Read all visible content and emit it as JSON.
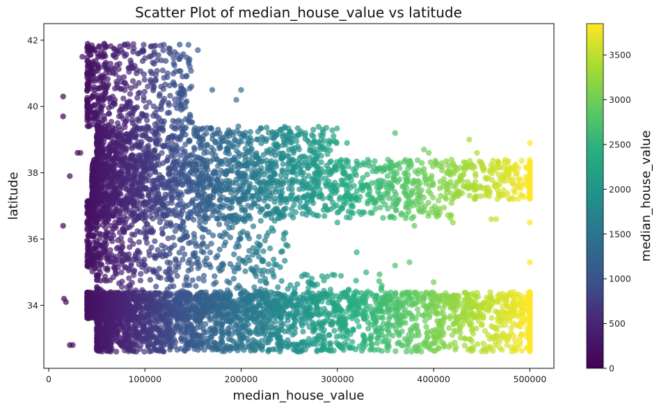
{
  "chart_data": {
    "type": "scatter",
    "title": "Scatter Plot of median_house_value vs latitude",
    "xlabel": "median_house_value",
    "ylabel": "latitude",
    "xlim": [
      -5000,
      525000
    ],
    "ylim": [
      32.1,
      42.5
    ],
    "x_ticks": [
      0,
      100000,
      200000,
      300000,
      400000,
      500000
    ],
    "x_tick_labels": [
      "0",
      "100000",
      "200000",
      "300000",
      "400000",
      "500000"
    ],
    "y_ticks": [
      34,
      36,
      38,
      40,
      42
    ],
    "y_tick_labels": [
      "34",
      "36",
      "38",
      "40",
      "42"
    ],
    "grid": false,
    "colormap": "viridis",
    "point_alpha": 0.7,
    "colorbar": {
      "label": "median_house_value",
      "range": [
        0,
        3850
      ],
      "ticks": [
        0,
        500,
        1000,
        1500,
        2000,
        2500,
        3000,
        3500
      ],
      "tick_labels": [
        "0",
        "500",
        "1000",
        "1500",
        "2000",
        "2500",
        "3000",
        "3500"
      ]
    },
    "latitude_bands": [
      {
        "latitude_range": [
          37.2,
          38.4
        ],
        "x_range": [
          45000,
          500000
        ],
        "weight": 0.22
      },
      {
        "latitude_range": [
          36.6,
          37.2
        ],
        "x_range": [
          40000,
          420000
        ],
        "weight": 0.08
      },
      {
        "latitude_range": [
          38.4,
          39.4
        ],
        "x_range": [
          50000,
          300000
        ],
        "weight": 0.09
      },
      {
        "latitude_range": [
          39.4,
          41.9
        ],
        "x_range": [
          40000,
          150000
        ],
        "weight": 0.07
      },
      {
        "latitude_range": [
          35.0,
          36.6
        ],
        "x_range": [
          40000,
          250000
        ],
        "weight": 0.07
      },
      {
        "latitude_range": [
          33.6,
          34.4
        ],
        "x_range": [
          40000,
          500000
        ],
        "weight": 0.27
      },
      {
        "latitude_range": [
          32.6,
          33.6
        ],
        "x_range": [
          50000,
          500000
        ],
        "weight": 0.18
      },
      {
        "latitude_range": [
          34.4,
          35.0
        ],
        "x_range": [
          50000,
          350000
        ],
        "weight": 0.02
      }
    ],
    "notable_points": [
      {
        "x": 15000,
        "y": 40.3
      },
      {
        "x": 15000,
        "y": 39.7
      },
      {
        "x": 15000,
        "y": 36.4
      },
      {
        "x": 16000,
        "y": 34.2
      },
      {
        "x": 18000,
        "y": 34.1
      },
      {
        "x": 22000,
        "y": 37.9
      },
      {
        "x": 22000,
        "y": 32.8
      },
      {
        "x": 25000,
        "y": 32.8
      },
      {
        "x": 30000,
        "y": 38.6
      },
      {
        "x": 33000,
        "y": 38.6
      },
      {
        "x": 35000,
        "y": 41.5
      },
      {
        "x": 40000,
        "y": 41.0
      },
      {
        "x": 155000,
        "y": 41.7
      },
      {
        "x": 200000,
        "y": 40.5
      },
      {
        "x": 195000,
        "y": 40.2
      },
      {
        "x": 170000,
        "y": 40.5
      },
      {
        "x": 250000,
        "y": 39.2
      },
      {
        "x": 275000,
        "y": 39.3
      },
      {
        "x": 310000,
        "y": 38.9
      },
      {
        "x": 360000,
        "y": 39.2
      },
      {
        "x": 390000,
        "y": 38.7
      },
      {
        "x": 395000,
        "y": 38.6
      },
      {
        "x": 437000,
        "y": 39.0
      },
      {
        "x": 445000,
        "y": 38.6
      },
      {
        "x": 500000,
        "y": 38.9
      },
      {
        "x": 500000,
        "y": 36.5
      },
      {
        "x": 500000,
        "y": 35.3
      },
      {
        "x": 400000,
        "y": 34.7
      },
      {
        "x": 380000,
        "y": 36.4
      },
      {
        "x": 360000,
        "y": 35.2
      },
      {
        "x": 375000,
        "y": 35.3
      },
      {
        "x": 320000,
        "y": 35.6
      },
      {
        "x": 300000,
        "y": 36.5
      },
      {
        "x": 460000,
        "y": 36.6
      },
      {
        "x": 465000,
        "y": 36.6
      },
      {
        "x": 490000,
        "y": 37.8
      },
      {
        "x": 500000,
        "y": 33.8
      },
      {
        "x": 500000,
        "y": 32.7
      },
      {
        "x": 420000,
        "y": 36.5
      },
      {
        "x": 260000,
        "y": 32.6
      },
      {
        "x": 200000,
        "y": 32.8
      },
      {
        "x": 145000,
        "y": 32.7
      }
    ]
  }
}
